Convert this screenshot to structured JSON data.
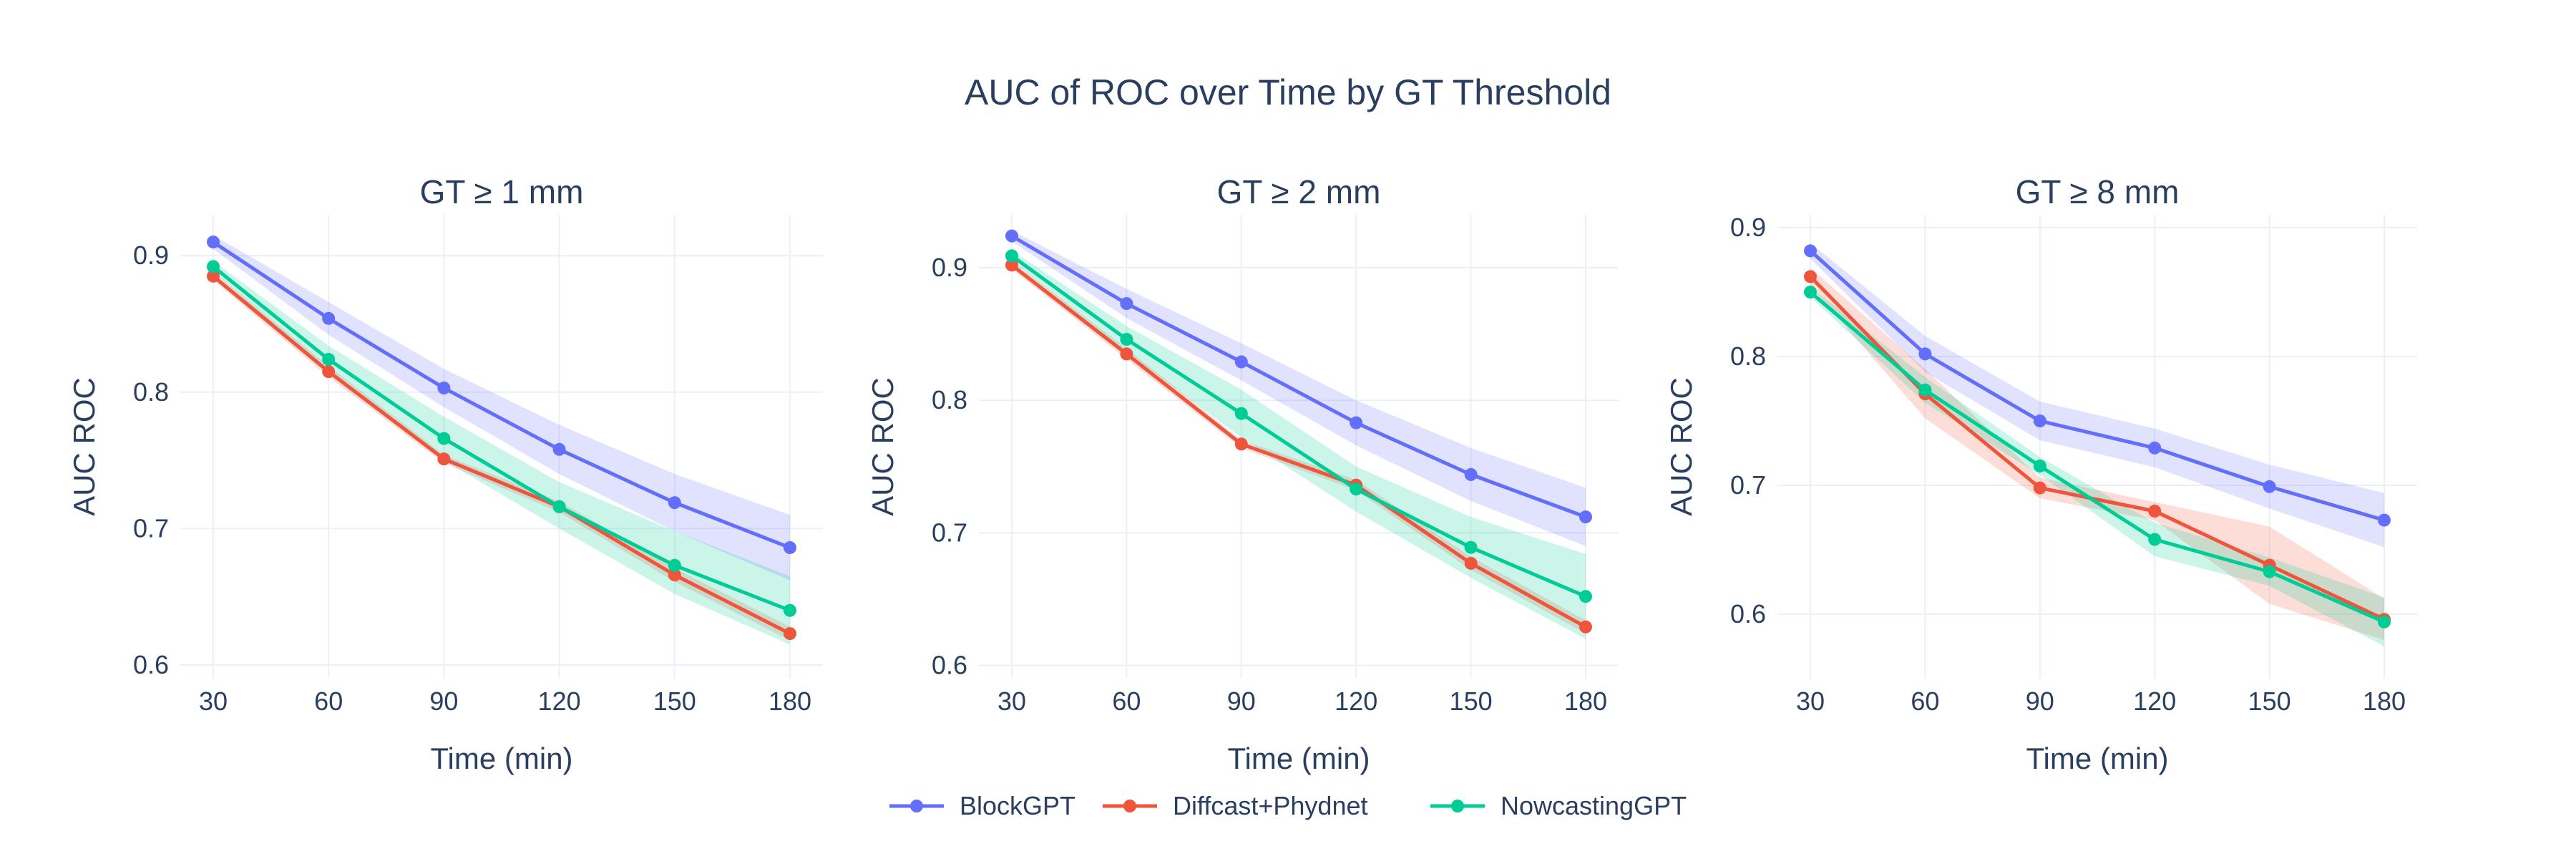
{
  "title": "AUC of ROC over Time by GT Threshold",
  "colors": {
    "BlockGPT": "#636efa",
    "Diffcast+Phydnet": "#ef553b",
    "NowcastingGPT": "#00cc96",
    "grid": "#ebf0f8",
    "text": "#2a3f5f"
  },
  "legend": {
    "placement": "bottom-center",
    "items": [
      "BlockGPT",
      "Diffcast+Phydnet",
      "NowcastingGPT"
    ]
  },
  "chart_data": [
    {
      "type": "line",
      "title": "GT ≥ 1 mm",
      "xlabel": "Time (min)",
      "ylabel": "AUC ROC",
      "x": [
        30,
        60,
        90,
        120,
        150,
        180
      ],
      "xticks": [
        "30",
        "60",
        "90",
        "120",
        "150",
        "180"
      ],
      "ylim": [
        0.59,
        0.93
      ],
      "yticks": [
        "0.6",
        "0.7",
        "0.8",
        "0.9"
      ],
      "grid": true,
      "series": [
        {
          "name": "BlockGPT",
          "values": [
            0.91,
            0.854,
            0.803,
            0.758,
            0.719,
            0.686
          ],
          "band_low": [
            0.905,
            0.842,
            0.789,
            0.74,
            0.698,
            0.662
          ],
          "band_high": [
            0.915,
            0.866,
            0.817,
            0.776,
            0.74,
            0.71
          ]
        },
        {
          "name": "Diffcast+Phydnet",
          "values": [
            0.885,
            0.815,
            0.751,
            0.716,
            0.666,
            0.623
          ],
          "band_low": [
            0.882,
            0.811,
            0.748,
            0.712,
            0.661,
            0.618
          ],
          "band_high": [
            0.888,
            0.819,
            0.754,
            0.72,
            0.671,
            0.628
          ]
        },
        {
          "name": "NowcastingGPT",
          "values": [
            0.892,
            0.824,
            0.766,
            0.716,
            0.673,
            0.64
          ],
          "band_low": [
            0.888,
            0.814,
            0.75,
            0.7,
            0.652,
            0.615
          ],
          "band_high": [
            0.896,
            0.834,
            0.782,
            0.734,
            0.698,
            0.665
          ]
        }
      ]
    },
    {
      "type": "line",
      "title": "GT ≥ 2 mm",
      "xlabel": "Time (min)",
      "ylabel": "AUC ROC",
      "x": [
        30,
        60,
        90,
        120,
        150,
        180
      ],
      "xticks": [
        "30",
        "60",
        "90",
        "120",
        "150",
        "180"
      ],
      "ylim": [
        0.59,
        0.94
      ],
      "yticks": [
        "0.6",
        "0.7",
        "0.8",
        "0.9"
      ],
      "grid": true,
      "series": [
        {
          "name": "BlockGPT",
          "values": [
            0.924,
            0.873,
            0.829,
            0.783,
            0.744,
            0.712
          ],
          "band_low": [
            0.92,
            0.862,
            0.815,
            0.766,
            0.724,
            0.69
          ],
          "band_high": [
            0.928,
            0.884,
            0.843,
            0.8,
            0.764,
            0.734
          ]
        },
        {
          "name": "Diffcast+Phydnet",
          "values": [
            0.902,
            0.835,
            0.767,
            0.736,
            0.677,
            0.629
          ],
          "band_low": [
            0.899,
            0.831,
            0.764,
            0.732,
            0.672,
            0.624
          ],
          "band_high": [
            0.905,
            0.839,
            0.77,
            0.74,
            0.682,
            0.634
          ]
        },
        {
          "name": "NowcastingGPT",
          "values": [
            0.909,
            0.846,
            0.79,
            0.733,
            0.689,
            0.652
          ],
          "band_low": [
            0.905,
            0.836,
            0.772,
            0.716,
            0.666,
            0.62
          ],
          "band_high": [
            0.913,
            0.856,
            0.808,
            0.75,
            0.712,
            0.684
          ]
        }
      ]
    },
    {
      "type": "line",
      "title": "GT ≥ 8 mm",
      "xlabel": "Time (min)",
      "ylabel": "AUC ROC",
      "x": [
        30,
        60,
        90,
        120,
        150,
        180
      ],
      "xticks": [
        "30",
        "60",
        "90",
        "120",
        "150",
        "180"
      ],
      "ylim": [
        0.55,
        0.91
      ],
      "yticks": [
        "0.6",
        "0.7",
        "0.8",
        "0.9"
      ],
      "grid": true,
      "series": [
        {
          "name": "BlockGPT",
          "values": [
            0.882,
            0.802,
            0.75,
            0.729,
            0.699,
            0.673
          ],
          "band_low": [
            0.876,
            0.788,
            0.735,
            0.714,
            0.682,
            0.652
          ],
          "band_high": [
            0.888,
            0.816,
            0.765,
            0.744,
            0.716,
            0.694
          ]
        },
        {
          "name": "Diffcast+Phydnet",
          "values": [
            0.862,
            0.771,
            0.698,
            0.68,
            0.638,
            0.596
          ],
          "band_low": [
            0.855,
            0.752,
            0.69,
            0.673,
            0.608,
            0.58
          ],
          "band_high": [
            0.869,
            0.79,
            0.706,
            0.687,
            0.668,
            0.612
          ]
        },
        {
          "name": "NowcastingGPT",
          "values": [
            0.85,
            0.774,
            0.715,
            0.658,
            0.633,
            0.594
          ],
          "band_low": [
            0.846,
            0.764,
            0.708,
            0.645,
            0.622,
            0.575
          ],
          "band_high": [
            0.854,
            0.784,
            0.722,
            0.671,
            0.644,
            0.613
          ]
        }
      ]
    }
  ]
}
